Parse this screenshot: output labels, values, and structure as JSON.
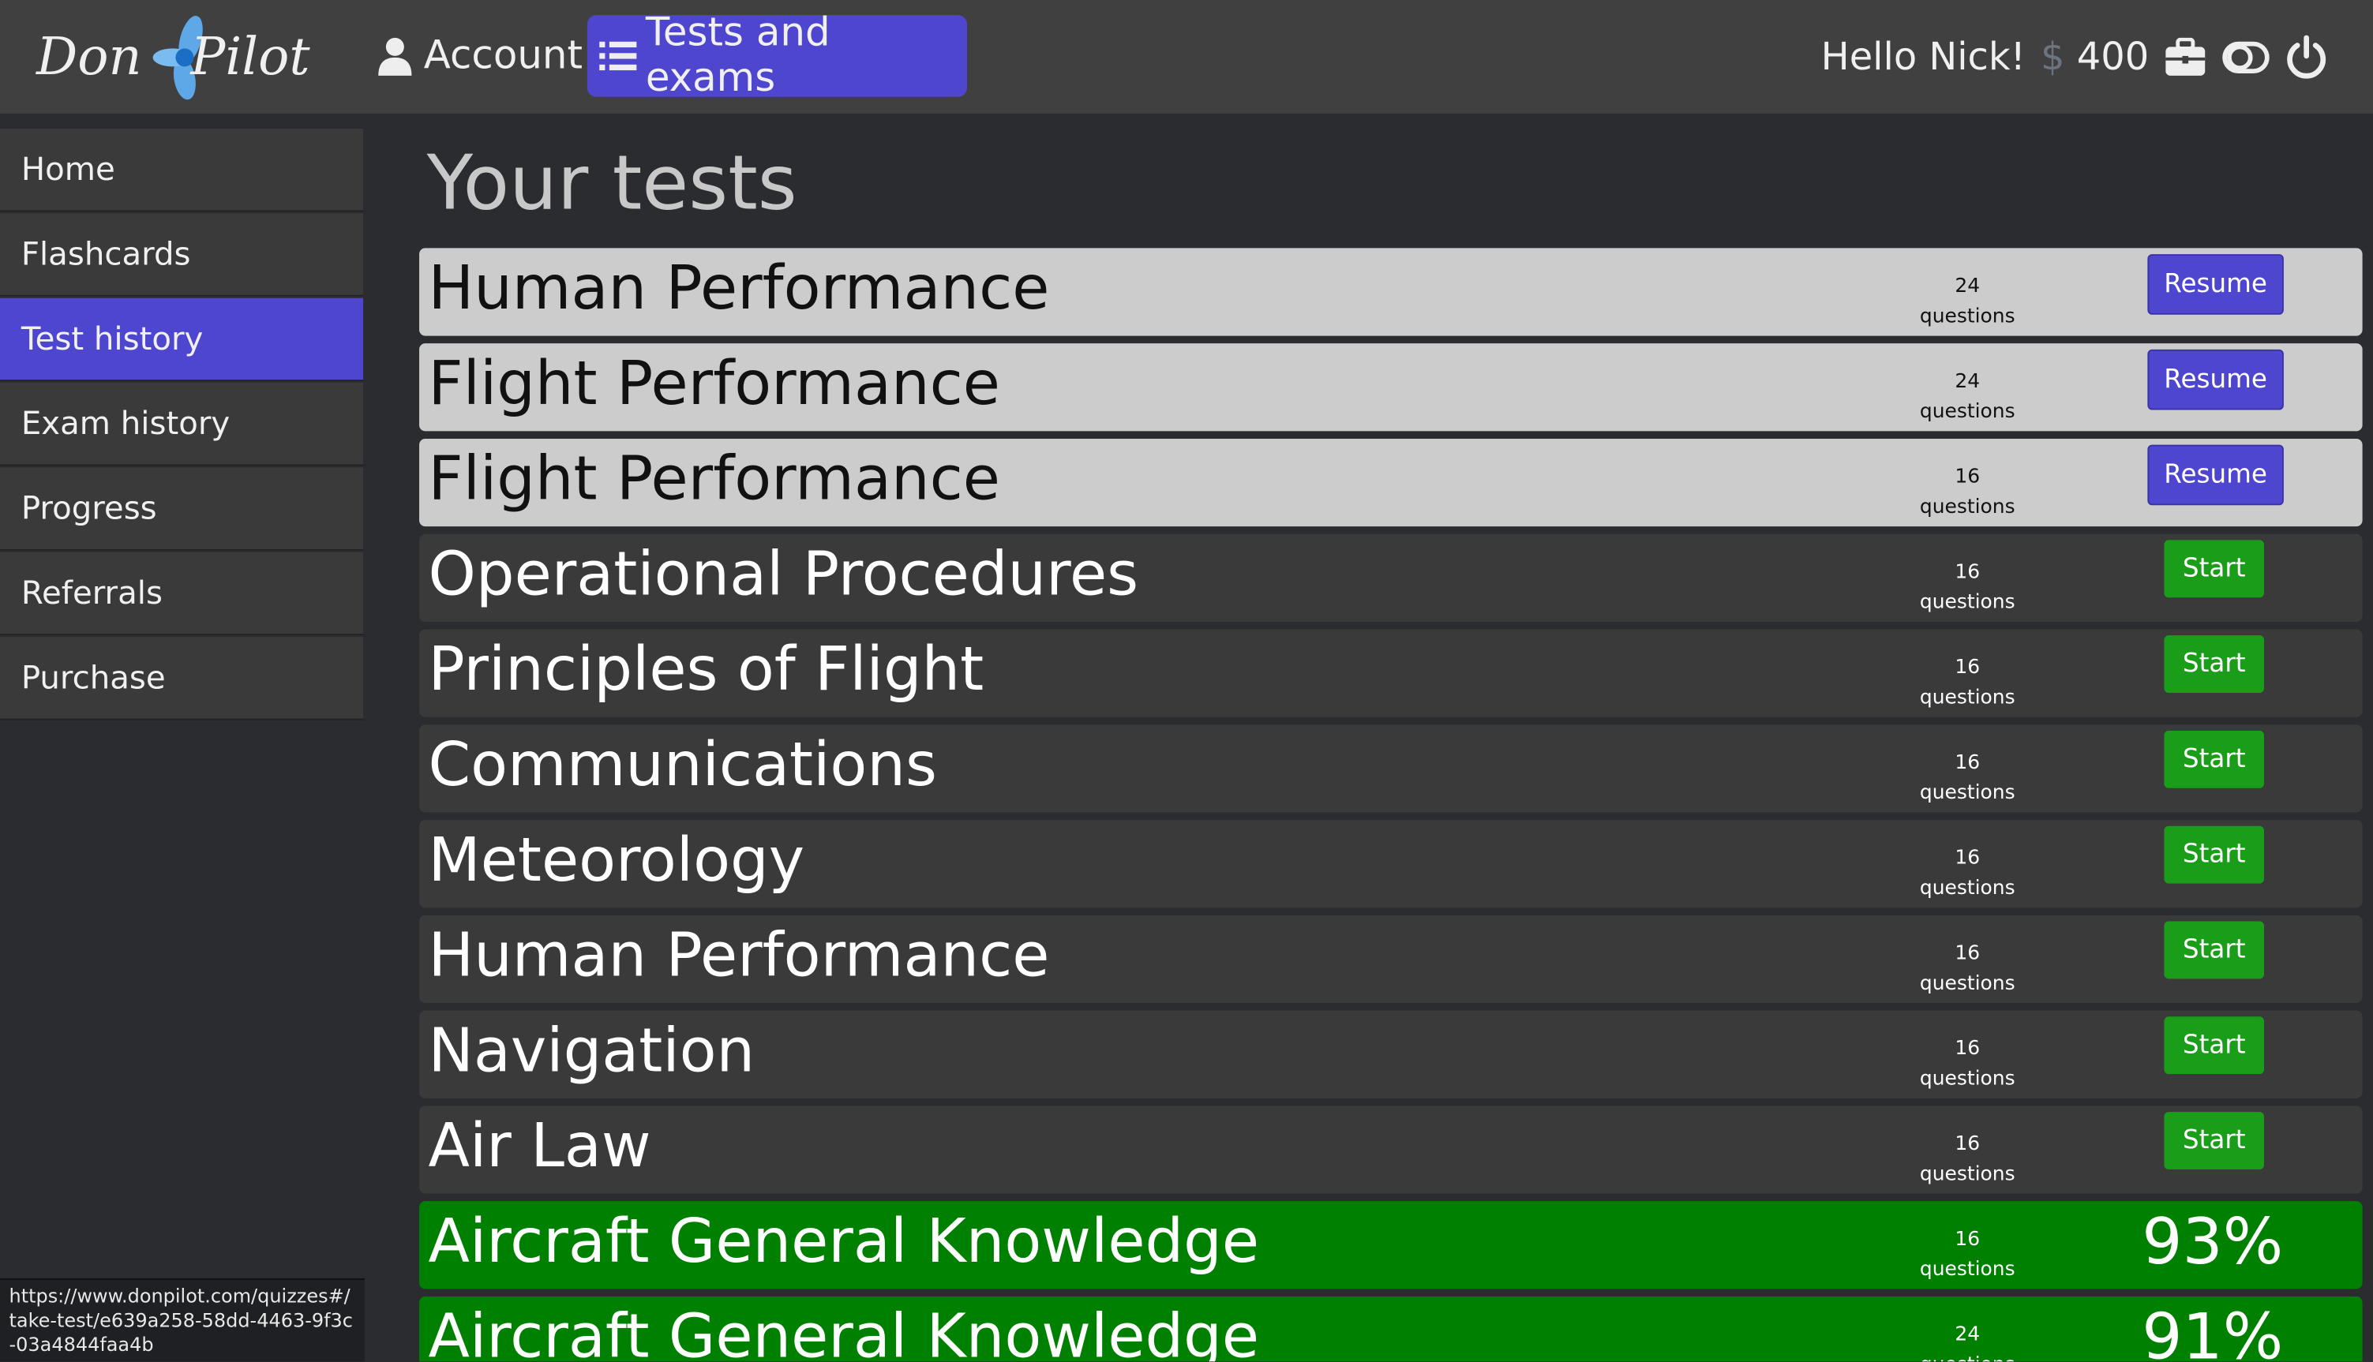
{
  "header": {
    "logo_text": "Don Pilot",
    "nav": [
      {
        "label": "Account",
        "icon": "user-icon"
      },
      {
        "label": "Tests and exams",
        "icon": "list-icon",
        "active": true
      }
    ],
    "greeting": "Hello Nick!",
    "currency_symbol": "$",
    "balance": "400"
  },
  "sidebar": {
    "items": [
      {
        "label": "Home"
      },
      {
        "label": "Flashcards"
      },
      {
        "label": "Test history",
        "active": true
      },
      {
        "label": "Exam history"
      },
      {
        "label": "Progress"
      },
      {
        "label": "Referrals"
      },
      {
        "label": "Purchase"
      }
    ]
  },
  "main": {
    "title": "Your tests",
    "tests": [
      {
        "name": "Human Performance",
        "count": "24",
        "unit": "questions",
        "state": "in-progress",
        "action": "Resume"
      },
      {
        "name": "Flight Performance",
        "count": "24",
        "unit": "questions",
        "state": "in-progress",
        "action": "Resume"
      },
      {
        "name": "Flight Performance",
        "count": "16",
        "unit": "questions",
        "state": "in-progress",
        "action": "Resume"
      },
      {
        "name": "Operational Procedures",
        "count": "16",
        "unit": "questions",
        "state": "new",
        "action": "Start"
      },
      {
        "name": "Principles of Flight",
        "count": "16",
        "unit": "questions",
        "state": "new",
        "action": "Start"
      },
      {
        "name": "Communications",
        "count": "16",
        "unit": "questions",
        "state": "new",
        "action": "Start"
      },
      {
        "name": "Meteorology",
        "count": "16",
        "unit": "questions",
        "state": "new",
        "action": "Start"
      },
      {
        "name": "Human Performance",
        "count": "16",
        "unit": "questions",
        "state": "new",
        "action": "Start"
      },
      {
        "name": "Navigation",
        "count": "16",
        "unit": "questions",
        "state": "new",
        "action": "Start"
      },
      {
        "name": "Air Law",
        "count": "16",
        "unit": "questions",
        "state": "new",
        "action": "Start"
      },
      {
        "name": "Aircraft General Knowledge",
        "count": "16",
        "unit": "questions",
        "state": "completed",
        "score": "93%"
      },
      {
        "name": "Aircraft General Knowledge",
        "count": "24",
        "unit": "questions",
        "state": "completed",
        "score": "91%"
      }
    ]
  },
  "status_bar": {
    "url": "https://www.donpilot.com/quizzes#/take-test/e639a258-58dd-4463-9f3c-03a4844faa4b"
  },
  "colors": {
    "accent": "#4f46cf",
    "success": "#008000",
    "start_button": "#1a9e1a",
    "header": "#404040",
    "background": "#2b2c30"
  }
}
